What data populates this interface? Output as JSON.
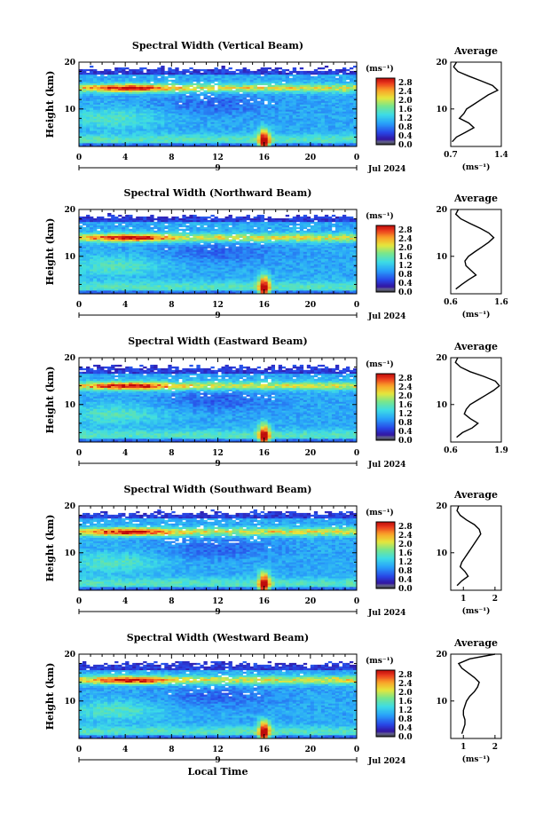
{
  "chart_data": [
    {
      "type": "heatmap",
      "title": "Spectral Width (Vertical Beam)",
      "xlabel": "",
      "ylabel": "Height (km)",
      "xlim": [
        0,
        24
      ],
      "ylim": [
        2,
        20
      ],
      "x_ticks": [
        "0",
        "4",
        "8",
        "12",
        "16",
        "20",
        "0"
      ],
      "y_ticks": [
        "10",
        "20"
      ],
      "date_label": "Jul 2024",
      "date_marker": "9",
      "colorbar": {
        "unit": "(ms⁻¹)",
        "labels": [
          "2.8",
          "2.4",
          "2.0",
          "1.6",
          "1.2",
          "0.8",
          "0.4",
          "0.0"
        ],
        "range": [
          0,
          3.0
        ]
      },
      "features": {
        "tropopause_km": 14.5,
        "top_km": 18.5,
        "burst_hour": 16
      },
      "average_profile": {
        "title": "Average",
        "xlabel": "(ms⁻¹)",
        "x_ticks": [
          "0.7",
          "1.4"
        ],
        "xlim": [
          0.7,
          1.4
        ],
        "y_ticks": [
          "10",
          "20"
        ],
        "height": [
          3,
          4,
          5,
          6,
          7,
          8,
          9,
          10,
          11,
          12,
          13,
          14,
          15,
          16,
          17,
          18,
          19,
          20
        ],
        "value": [
          0.72,
          0.78,
          0.9,
          1.02,
          0.95,
          0.82,
          0.88,
          0.92,
          1.02,
          1.12,
          1.22,
          1.35,
          1.28,
          1.12,
          0.95,
          0.8,
          0.74,
          0.78
        ]
      }
    },
    {
      "type": "heatmap",
      "title": "Spectral Width (Northward Beam)",
      "xlabel": "",
      "ylabel": "Height (km)",
      "xlim": [
        0,
        24
      ],
      "ylim": [
        2,
        20
      ],
      "x_ticks": [
        "0",
        "4",
        "8",
        "12",
        "16",
        "20",
        "0"
      ],
      "y_ticks": [
        "10",
        "20"
      ],
      "date_label": "Jul 2024",
      "date_marker": "9",
      "colorbar": {
        "unit": "(ms⁻¹)",
        "labels": [
          "2.8",
          "2.4",
          "2.0",
          "1.6",
          "1.2",
          "0.8",
          "0.4",
          "0.0"
        ],
        "range": [
          0,
          3.0
        ]
      },
      "features": {
        "tropopause_km": 14,
        "top_km": 18.5,
        "burst_hour": 16
      },
      "average_profile": {
        "title": "Average",
        "xlabel": "(ms⁻¹)",
        "x_ticks": [
          "0.6",
          "1.6"
        ],
        "xlim": [
          0.6,
          1.6
        ],
        "y_ticks": [
          "10",
          "20"
        ],
        "height": [
          3,
          4,
          5,
          6,
          7,
          8,
          9,
          10,
          11,
          12,
          13,
          14,
          15,
          16,
          17,
          18,
          19,
          20
        ],
        "value": [
          0.7,
          0.82,
          0.95,
          1.1,
          1.0,
          0.9,
          0.88,
          0.95,
          1.08,
          1.22,
          1.35,
          1.45,
          1.35,
          1.18,
          0.98,
          0.8,
          0.7,
          0.75
        ]
      }
    },
    {
      "type": "heatmap",
      "title": "Spectral Width (Eastward Beam)",
      "xlabel": "",
      "ylabel": "Height (km)",
      "xlim": [
        0,
        24
      ],
      "ylim": [
        2,
        20
      ],
      "x_ticks": [
        "0",
        "4",
        "8",
        "12",
        "16",
        "20",
        "0"
      ],
      "y_ticks": [
        "10",
        "20"
      ],
      "date_label": "Jul 2024",
      "date_marker": "9",
      "colorbar": {
        "unit": "(ms⁻¹)",
        "labels": [
          "2.8",
          "2.4",
          "2.0",
          "1.6",
          "1.2",
          "0.8",
          "0.4",
          "0.0"
        ],
        "range": [
          0,
          3.0
        ]
      },
      "features": {
        "tropopause_km": 14,
        "top_km": 18,
        "burst_hour": 16
      },
      "average_profile": {
        "title": "Average",
        "xlabel": "",
        "x_ticks": [
          "0.6",
          "1.9"
        ],
        "xlim": [
          0.6,
          1.9
        ],
        "y_ticks": [
          "10",
          "20"
        ],
        "height": [
          3,
          4,
          5,
          6,
          7,
          8,
          9,
          10,
          11,
          12,
          13,
          14,
          15,
          16,
          17,
          18,
          19,
          20
        ],
        "value": [
          0.75,
          0.9,
          1.15,
          1.3,
          1.1,
          0.95,
          1.0,
          1.1,
          1.3,
          1.5,
          1.7,
          1.85,
          1.75,
          1.45,
          1.1,
          0.85,
          0.72,
          0.78
        ]
      }
    },
    {
      "type": "heatmap",
      "title": "Spectral Width (Southward Beam)",
      "xlabel": "",
      "ylabel": "Height (km)",
      "xlim": [
        0,
        24
      ],
      "ylim": [
        2,
        20
      ],
      "x_ticks": [
        "0",
        "4",
        "8",
        "12",
        "16",
        "20",
        "0"
      ],
      "y_ticks": [
        "10",
        "20"
      ],
      "date_label": "Jul 2024",
      "date_marker": "9",
      "colorbar": {
        "unit": "(ms⁻¹)",
        "labels": [
          "2.8",
          "2.4",
          "2.0",
          "1.6",
          "1.2",
          "0.8",
          "0.4",
          "0.0"
        ],
        "range": [
          0,
          3.0
        ]
      },
      "features": {
        "tropopause_km": 14.5,
        "top_km": 18.5,
        "burst_hour": 16
      },
      "average_profile": {
        "title": "Average",
        "xlabel": "(ms⁻¹)",
        "x_ticks": [
          "1",
          "2"
        ],
        "xlim": [
          0.6,
          2.2
        ],
        "y_ticks": [
          "10",
          "20"
        ],
        "height": [
          3,
          4,
          5,
          6,
          7,
          8,
          9,
          10,
          11,
          12,
          13,
          14,
          15,
          16,
          17,
          18,
          19,
          20
        ],
        "value": [
          0.8,
          0.95,
          1.15,
          1.05,
          0.9,
          0.95,
          1.05,
          1.15,
          1.25,
          1.35,
          1.45,
          1.55,
          1.5,
          1.35,
          1.1,
          0.9,
          0.8,
          0.85
        ]
      }
    },
    {
      "type": "heatmap",
      "title": "Spectral Width (Westward Beam)",
      "xlabel": "Local Time",
      "ylabel": "Height (km)",
      "xlim": [
        0,
        24
      ],
      "ylim": [
        2,
        20
      ],
      "x_ticks": [
        "0",
        "4",
        "8",
        "12",
        "16",
        "20",
        "0"
      ],
      "y_ticks": [
        "10",
        "20"
      ],
      "date_label": "Jul 2024",
      "date_marker": "9",
      "colorbar": {
        "unit": "(ms⁻¹)",
        "labels": [
          "2.8",
          "2.4",
          "2.0",
          "1.6",
          "1.2",
          "0.8",
          "0.4",
          "0.0"
        ],
        "range": [
          0,
          3.0
        ]
      },
      "features": {
        "tropopause_km": 14.5,
        "top_km": 18,
        "burst_hour": 16
      },
      "average_profile": {
        "title": "Average",
        "xlabel": "(ms⁻¹)",
        "x_ticks": [
          "1",
          "2"
        ],
        "xlim": [
          0.6,
          2.2
        ],
        "y_ticks": [
          "10",
          "20"
        ],
        "height": [
          3,
          4,
          5,
          6,
          7,
          8,
          9,
          10,
          11,
          12,
          13,
          14,
          15,
          16,
          17,
          18,
          19,
          20
        ],
        "value": [
          0.95,
          1.0,
          1.05,
          1.05,
          1.0,
          1.0,
          1.05,
          1.1,
          1.2,
          1.35,
          1.45,
          1.5,
          1.35,
          1.15,
          0.95,
          0.85,
          1.2,
          2.0
        ]
      }
    }
  ]
}
